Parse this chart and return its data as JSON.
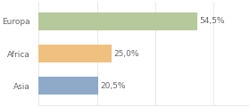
{
  "categories": [
    "Europa",
    "Africa",
    "Asia"
  ],
  "values": [
    54.5,
    25.0,
    20.5
  ],
  "labels": [
    "54,5%",
    "25,0%",
    "20,5%"
  ],
  "bar_colors": [
    "#b5c99a",
    "#f0c080",
    "#8eaac8"
  ],
  "background_color": "#ffffff",
  "xlim": [
    0,
    72
  ],
  "bar_height": 0.55,
  "label_fontsize": 6.5,
  "category_fontsize": 6.5,
  "label_color": "#666666",
  "grid_color": "#dddddd"
}
